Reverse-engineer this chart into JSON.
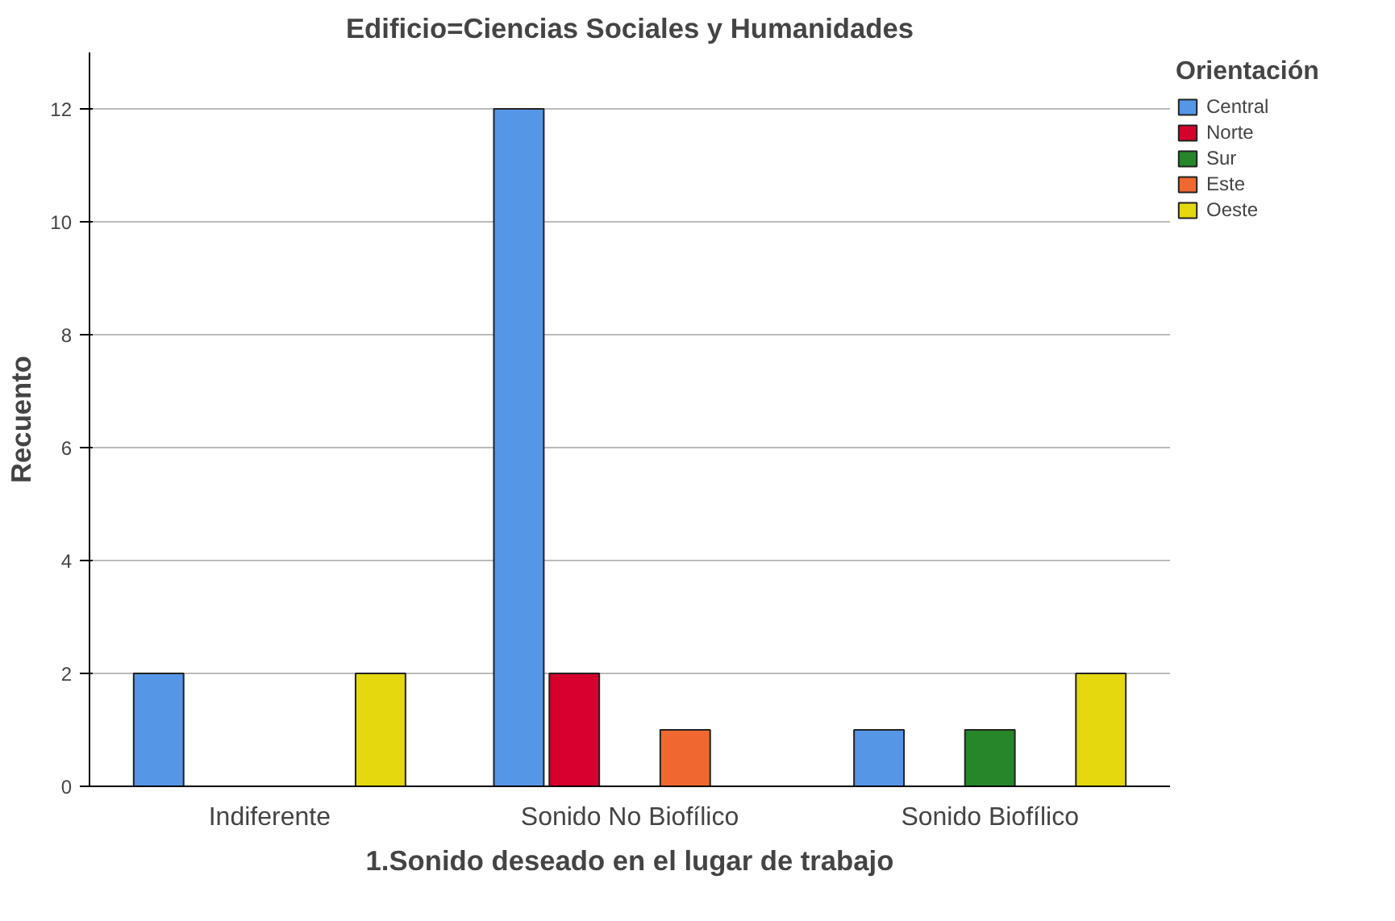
{
  "chart_data": {
    "type": "bar",
    "title": "Edificio=Ciencias Sociales y Humanidades",
    "xlabel": "1.Sonido deseado en el lugar de trabajo",
    "ylabel": "Recuento",
    "legend_title": "Orientación",
    "categories": [
      "Indiferente",
      "Sonido No Biofílico",
      "Sonido Biofílico"
    ],
    "series": [
      {
        "name": "Central",
        "color": "#5596e6",
        "values": [
          2,
          12,
          1
        ]
      },
      {
        "name": "Norte",
        "color": "#d6002c",
        "values": [
          null,
          2,
          null
        ]
      },
      {
        "name": "Sur",
        "color": "#25862a",
        "values": [
          null,
          null,
          1
        ]
      },
      {
        "name": "Este",
        "color": "#f06830",
        "values": [
          null,
          1,
          null
        ]
      },
      {
        "name": "Oeste",
        "color": "#e5d80f",
        "values": [
          2,
          null,
          2
        ]
      }
    ],
    "ylim": [
      0,
      13
    ],
    "yticks": [
      0,
      2,
      4,
      6,
      8,
      10,
      12
    ],
    "grid": "y",
    "legend": "top right"
  }
}
